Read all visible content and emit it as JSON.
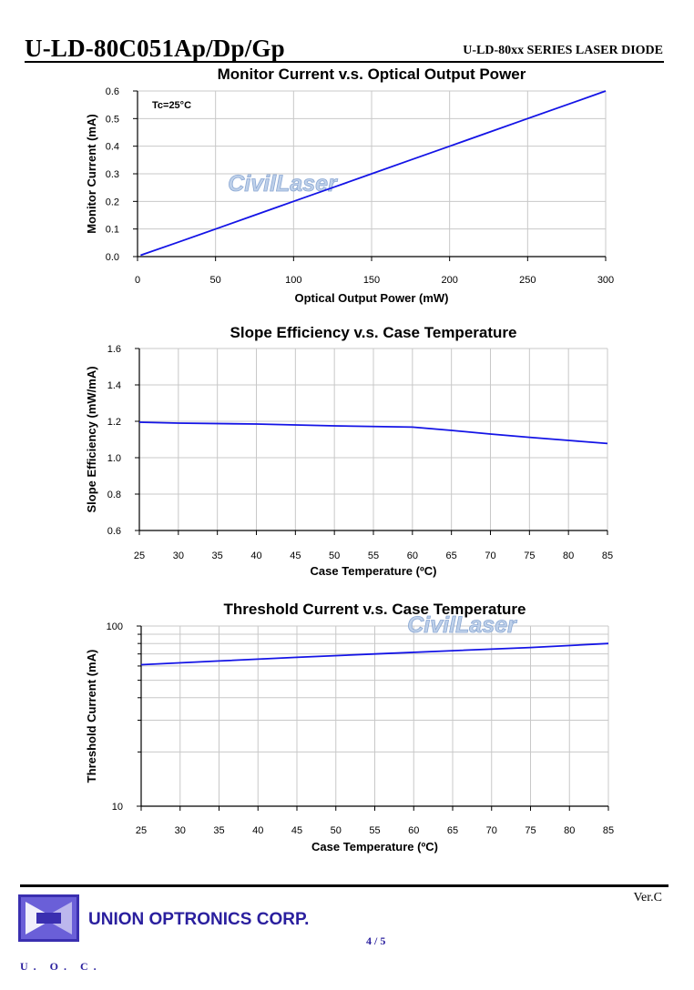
{
  "header": {
    "title": "U-LD-80C051Ap/Dp/Gp",
    "series": "U-LD-80xx SERIES LASER DIODE"
  },
  "watermark": "CivilLaser",
  "colors": {
    "series": "#1414e6",
    "grid": "#c8c8c8",
    "brand": "#2a1f9e"
  },
  "chart_data": [
    {
      "type": "line",
      "title": "Monitor Current v.s. Optical Output Power",
      "xlabel": "Optical Output Power (mW)",
      "ylabel": "Monitor Current (mA)",
      "xlim": [
        0,
        300
      ],
      "ylim": [
        0,
        0.6
      ],
      "xticks": [
        "0",
        "50",
        "100",
        "150",
        "200",
        "250",
        "300"
      ],
      "yticks": [
        "0.0",
        "0.1",
        "0.2",
        "0.3",
        "0.4",
        "0.5",
        "0.6"
      ],
      "annotation": "Tc=25°C",
      "grid": true,
      "series": [
        {
          "x": [
            2,
            25,
            50,
            75,
            90,
            100,
            125,
            150,
            175,
            200,
            225,
            250,
            275,
            300
          ],
          "values": [
            0.005,
            0.05,
            0.1,
            0.15,
            0.18,
            0.2,
            0.25,
            0.3,
            0.35,
            0.4,
            0.45,
            0.5,
            0.55,
            0.6
          ]
        }
      ]
    },
    {
      "type": "line",
      "title": "Slope Efficiency v.s. Case Temperature",
      "xlabel": "Case Temperature (ºC)",
      "ylabel": "Slope Efficiency (mW/mA)",
      "xlim": [
        25,
        85
      ],
      "ylim": [
        0.6,
        1.6
      ],
      "xticks": [
        "25",
        "30",
        "35",
        "40",
        "45",
        "50",
        "55",
        "60",
        "65",
        "70",
        "75",
        "80",
        "85"
      ],
      "yticks": [
        "0.6",
        "0.8",
        "1.0",
        "1.2",
        "1.4",
        "1.6"
      ],
      "grid": true,
      "series": [
        {
          "x": [
            25,
            30,
            40,
            50,
            60,
            65,
            70,
            75,
            80,
            85
          ],
          "values": [
            1.195,
            1.19,
            1.185,
            1.175,
            1.168,
            1.15,
            1.13,
            1.112,
            1.095,
            1.078
          ]
        }
      ]
    },
    {
      "type": "line",
      "title": "Threshold Current v.s. Case Temperature",
      "xlabel": "Case Temperature (ºC)",
      "ylabel": "Threshold Current (mA)",
      "xlim": [
        25,
        85
      ],
      "ylim": [
        10,
        100
      ],
      "yscale": "log",
      "xticks": [
        "25",
        "30",
        "35",
        "40",
        "45",
        "50",
        "55",
        "60",
        "65",
        "70",
        "75",
        "80",
        "85"
      ],
      "yticks": [
        "10",
        "100"
      ],
      "grid": true,
      "series": [
        {
          "x": [
            25,
            35,
            45,
            55,
            65,
            75,
            85
          ],
          "values": [
            61,
            64,
            67,
            70,
            73,
            76,
            80
          ]
        }
      ]
    }
  ],
  "footer": {
    "version": "Ver.C",
    "company": "UNION OPTRONICS CORP.",
    "page": "4 / 5",
    "logo_text": "U. O. C."
  }
}
